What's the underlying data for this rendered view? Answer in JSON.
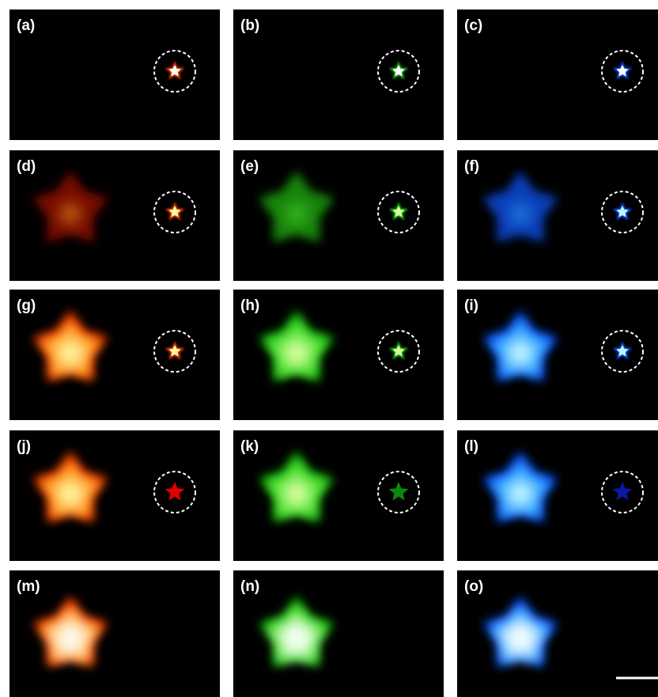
{
  "panels": [
    {
      "label": "(a)"
    },
    {
      "label": "(b)"
    },
    {
      "label": "(c)"
    },
    {
      "label": "(d)"
    },
    {
      "label": "(e)"
    },
    {
      "label": "(f)"
    },
    {
      "label": "(g)"
    },
    {
      "label": "(h)"
    },
    {
      "label": "(i)"
    },
    {
      "label": "(j)"
    },
    {
      "label": "(k)"
    },
    {
      "label": "(l)"
    },
    {
      "label": "(m)"
    },
    {
      "label": "(n)"
    },
    {
      "label": "(o)"
    }
  ]
}
